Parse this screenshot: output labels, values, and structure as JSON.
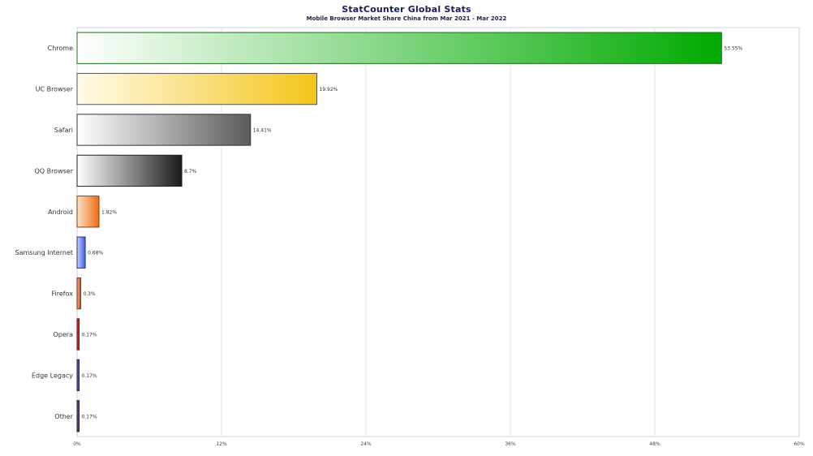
{
  "chart_data": {
    "type": "bar",
    "orientation": "horizontal",
    "title": "StatCounter Global Stats",
    "subtitle": "Mobile Browser Market Share China from Mar 2021 - Mar 2022",
    "xlabel": "",
    "ylabel": "",
    "xlim": [
      0,
      60
    ],
    "grid": true,
    "ticks": [
      "0%",
      "12%",
      "24%",
      "36%",
      "48%",
      "60%"
    ],
    "tick_values": [
      0,
      12,
      24,
      36,
      48,
      60
    ],
    "categories": [
      "Chrome",
      "UC Browser",
      "Safari",
      "QQ Browser",
      "Android",
      "Samsung Internet",
      "Firefox",
      "Opera",
      "Edge Legacy",
      "Other"
    ],
    "values": [
      53.55,
      19.92,
      14.41,
      8.7,
      1.82,
      0.68,
      0.3,
      0.17,
      0.17,
      0.17
    ],
    "value_labels": [
      "53.55%",
      "19.92%",
      "14.41%",
      "8.7%",
      "1.82%",
      "0.68%",
      "0.3%",
      "0.17%",
      "0.17%",
      "0.17%"
    ],
    "colors": [
      {
        "start": "#ffffff",
        "end": "#00aa00",
        "stroke": "#1c6e1c"
      },
      {
        "start": "#fffbea",
        "end": "#f5c51a",
        "stroke": "#555555"
      },
      {
        "start": "#ffffff",
        "end": "#5a5a5a",
        "stroke": "#333333"
      },
      {
        "start": "#ffffff",
        "end": "#1a1a1a",
        "stroke": "#222222"
      },
      {
        "start": "#fde3c8",
        "end": "#ef6a12",
        "stroke": "#8a3a10"
      },
      {
        "start": "#c8d4ff",
        "end": "#3f5bdb",
        "stroke": "#22337a"
      },
      {
        "start": "#f7b08a",
        "end": "#b4542a",
        "stroke": "#7a3418"
      },
      {
        "start": "#e04a4a",
        "end": "#a01515",
        "stroke": "#7a1010"
      },
      {
        "start": "#7b7fd8",
        "end": "#2a2e80",
        "stroke": "#1e2262"
      },
      {
        "start": "#8a6aa6",
        "end": "#3c2258",
        "stroke": "#2a1840"
      }
    ]
  }
}
